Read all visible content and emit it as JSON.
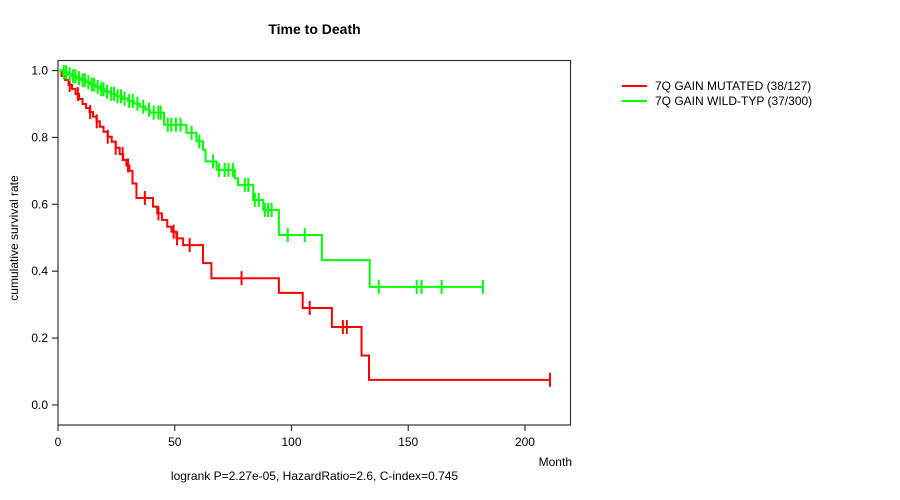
{
  "chart_data": {
    "type": "line",
    "subtype": "kaplan-meier-step-curve",
    "title": "Time to Death",
    "xlabel": "Month",
    "ylabel": "cumulative survival rate",
    "annotation": "logrank P=2.27e-05, HazardRatio=2.6, C-index=0.745",
    "xticks": [
      0,
      50,
      100,
      150,
      200
    ],
    "yticks": [
      0.0,
      0.2,
      0.4,
      0.6,
      0.8,
      1.0
    ],
    "xlim": [
      0,
      219.5
    ],
    "ylim": [
      -0.06,
      1.03
    ],
    "grid": false,
    "legend_position": "right-outside",
    "series": [
      {
        "name": "7Q GAIN MUTATED (38/127)",
        "color": "#ff0000",
        "steps": [
          [
            0,
            1.0
          ],
          [
            1.5,
            0.984
          ],
          [
            3,
            0.972
          ],
          [
            4.5,
            0.957
          ],
          [
            6,
            0.945
          ],
          [
            7.5,
            0.93
          ],
          [
            9,
            0.915
          ],
          [
            10.5,
            0.9
          ],
          [
            12,
            0.888
          ],
          [
            13.5,
            0.876
          ],
          [
            15,
            0.862
          ],
          [
            16.5,
            0.848
          ],
          [
            17.9,
            0.832
          ],
          [
            19.5,
            0.817
          ],
          [
            21.3,
            0.802
          ],
          [
            23,
            0.787
          ],
          [
            24.7,
            0.769
          ],
          [
            26.4,
            0.75
          ],
          [
            27.9,
            0.733
          ],
          [
            29.3,
            0.716
          ],
          [
            30.6,
            0.7
          ],
          [
            31.9,
            0.662
          ],
          [
            33.6,
            0.619
          ],
          [
            40.7,
            0.593
          ],
          [
            42.5,
            0.573
          ],
          [
            44.5,
            0.553
          ],
          [
            46.8,
            0.533
          ],
          [
            48.6,
            0.518
          ],
          [
            50.7,
            0.498
          ],
          [
            53.6,
            0.478
          ],
          [
            62.1,
            0.424
          ],
          [
            65.7,
            0.379
          ],
          [
            94.6,
            0.335
          ],
          [
            104.8,
            0.29
          ],
          [
            117.3,
            0.233
          ],
          [
            130.0,
            0.148
          ],
          [
            133.2,
            0.075
          ]
        ],
        "end_month": 210.7,
        "censor_months": [
          5,
          8.5,
          13.8,
          16.6,
          21.3,
          24.7,
          27.7,
          30,
          37.2,
          43,
          49.5,
          51,
          56.4,
          78.6,
          107.8,
          122,
          123.7,
          210.7
        ]
      },
      {
        "name": "7Q GAIN WILD-TYP (37/300)",
        "color": "#00ff00",
        "steps": [
          [
            0,
            1.0
          ],
          [
            2,
            0.995
          ],
          [
            4,
            0.989
          ],
          [
            6,
            0.983
          ],
          [
            8,
            0.977
          ],
          [
            10,
            0.971
          ],
          [
            12,
            0.965
          ],
          [
            14,
            0.958
          ],
          [
            16,
            0.951
          ],
          [
            18,
            0.944
          ],
          [
            20,
            0.937
          ],
          [
            22.5,
            0.93
          ],
          [
            25,
            0.923
          ],
          [
            27.5,
            0.916
          ],
          [
            30,
            0.909
          ],
          [
            32.5,
            0.901
          ],
          [
            35,
            0.892
          ],
          [
            37.5,
            0.883
          ],
          [
            39.3,
            0.874
          ],
          [
            45.4,
            0.838
          ],
          [
            55,
            0.814
          ],
          [
            59.3,
            0.788
          ],
          [
            62.1,
            0.763
          ],
          [
            63.2,
            0.728
          ],
          [
            67.9,
            0.703
          ],
          [
            75.7,
            0.678
          ],
          [
            77.1,
            0.658
          ],
          [
            83.6,
            0.613
          ],
          [
            87.9,
            0.583
          ],
          [
            94.6,
            0.508
          ],
          [
            113,
            0.433
          ],
          [
            133.5,
            0.353
          ]
        ],
        "end_month": 182,
        "censor_months": [
          2.5,
          3.5,
          5,
          6.5,
          7.5,
          9,
          10.5,
          11.5,
          13,
          14.5,
          15.5,
          17,
          18.5,
          19.5,
          21,
          22.8,
          24,
          25.5,
          27,
          28.5,
          30.5,
          32,
          34,
          36.5,
          39,
          41,
          43,
          44,
          47,
          48.5,
          50.5,
          52.5,
          57.2,
          60.5,
          66.4,
          69,
          71.4,
          73,
          75,
          80,
          81.5,
          84.3,
          86,
          88.6,
          90,
          91.5,
          98.4,
          105.7,
          137.4,
          153.6,
          155.7,
          164.3,
          182
        ]
      }
    ]
  }
}
